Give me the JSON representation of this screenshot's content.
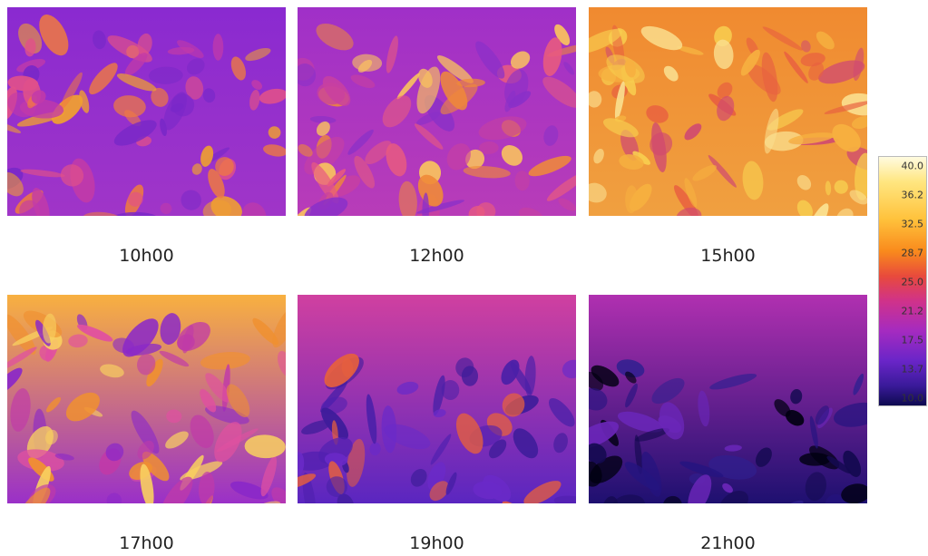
{
  "panels": [
    {
      "label": "10h00"
    },
    {
      "label": "12h00"
    },
    {
      "label": "15h00"
    },
    {
      "label": "17h00"
    },
    {
      "label": "19h00"
    },
    {
      "label": "21h00"
    }
  ],
  "color_scale": {
    "labels": [
      "40.0",
      "36.2",
      "32.5",
      "28.7",
      "25.0",
      "21.2",
      "17.5",
      "13.7",
      "10.0"
    ]
  }
}
